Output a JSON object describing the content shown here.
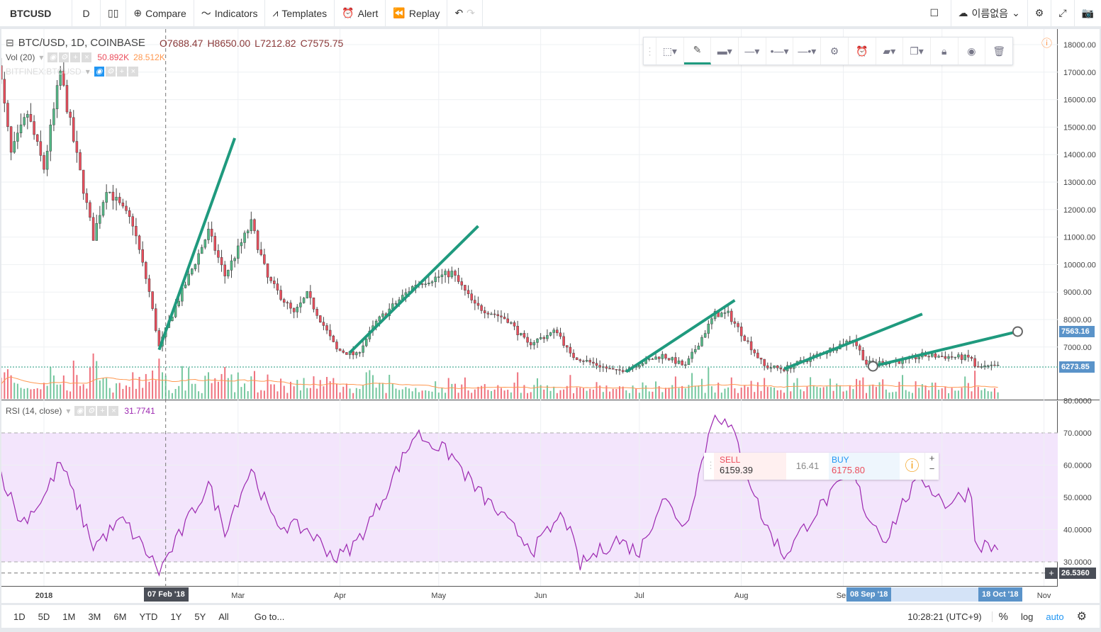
{
  "toolbar": {
    "symbol": "BTCUSD",
    "interval": "D",
    "compare": "Compare",
    "indicators": "Indicators",
    "templates": "Templates",
    "alert": "Alert",
    "replay": "Replay",
    "layout_name": "이름없음"
  },
  "legend": {
    "title": "BTC/USD, 1D, COINBASE",
    "o": "O7688.47",
    "h": "H8650.00",
    "l": "L7212.82",
    "c": "C7575.75",
    "vol_label": "Vol (20)",
    "vol_value": "50.892K",
    "vol_ma": "28.512K",
    "compare_symbol": "BITFINEX:BTCUSD",
    "rsi_label": "RSI (14, close)",
    "rsi_value": "31.7741"
  },
  "price_axis": [
    "18000.00",
    "17000.00",
    "16000.00",
    "15000.00",
    "14000.00",
    "13000.00",
    "12000.00",
    "11000.00",
    "10000.00",
    "9000.00",
    "8000.00",
    "7000.00"
  ],
  "price_tags": {
    "line": "7563.16",
    "last": "6273.85"
  },
  "rsi_axis": [
    "80.0000",
    "70.0000",
    "60.0000",
    "50.0000",
    "40.0000",
    "30.0000"
  ],
  "rsi_cursor": "26.5360",
  "time_axis": [
    "2018",
    "Mar",
    "Apr",
    "May",
    "Jun",
    "Jul",
    "Aug",
    "Sep",
    "Oct",
    "Nov"
  ],
  "date_tags": {
    "cursor": "07 Feb '18",
    "range_start": "08 Sep '18",
    "range_end": "18 Oct '18"
  },
  "trade": {
    "sell_label": "SELL",
    "sell_price": "6159.39",
    "spread": "16.41",
    "buy_label": "BUY",
    "buy_price": "6175.80"
  },
  "bottom": {
    "ranges": [
      "1D",
      "5D",
      "1M",
      "3M",
      "6M",
      "YTD",
      "1Y",
      "5Y",
      "All"
    ],
    "goto": "Go to...",
    "time": "10:28:21 (UTC+9)",
    "pct": "%",
    "log": "log",
    "auto": "auto"
  },
  "colors": {
    "up": "#53b987",
    "down": "#eb4d5c",
    "trendline": "#1f9a7e",
    "rsi": "#9c27b0",
    "rsi_band": "#f3e5fc",
    "accent": "#2196f3"
  },
  "chart_data": {
    "type": "candlestick",
    "close_path": [
      [
        "2017-12-18",
        17500
      ],
      [
        "2017-12-22",
        14000
      ],
      [
        "2017-12-27",
        15500
      ],
      [
        "2018-01-01",
        13500
      ],
      [
        "2018-01-06",
        17000
      ],
      [
        "2018-01-10",
        14500
      ],
      [
        "2018-01-16",
        11000
      ],
      [
        "2018-01-20",
        12800
      ],
      [
        "2018-01-28",
        11500
      ],
      [
        "2018-02-02",
        9000
      ],
      [
        "2018-02-05",
        7000
      ],
      [
        "2018-02-09",
        8200
      ],
      [
        "2018-02-20",
        11200
      ],
      [
        "2018-02-25",
        9600
      ],
      [
        "2018-03-05",
        11500
      ],
      [
        "2018-03-10",
        9500
      ],
      [
        "2018-03-18",
        8200
      ],
      [
        "2018-03-22",
        8900
      ],
      [
        "2018-03-31",
        6900
      ],
      [
        "2018-04-06",
        6700
      ],
      [
        "2018-04-12",
        7900
      ],
      [
        "2018-04-24",
        9300
      ],
      [
        "2018-05-05",
        9700
      ],
      [
        "2018-05-12",
        8500
      ],
      [
        "2018-05-22",
        8000
      ],
      [
        "2018-05-28",
        7100
      ],
      [
        "2018-06-06",
        7600
      ],
      [
        "2018-06-10",
        6700
      ],
      [
        "2018-06-24",
        6100
      ],
      [
        "2018-07-08",
        6700
      ],
      [
        "2018-07-15",
        6300
      ],
      [
        "2018-07-24",
        8200
      ],
      [
        "2018-07-28",
        8200
      ],
      [
        "2018-08-08",
        6300
      ],
      [
        "2018-08-14",
        6200
      ],
      [
        "2018-08-24",
        6700
      ],
      [
        "2018-09-04",
        7300
      ],
      [
        "2018-09-08",
        6400
      ],
      [
        "2018-09-20",
        6500
      ],
      [
        "2018-09-25",
        6700
      ],
      [
        "2018-10-10",
        6600
      ],
      [
        "2018-10-11",
        6250
      ],
      [
        "2018-10-18",
        6280
      ]
    ],
    "rsi_path": [
      [
        "2017-12-18",
        60
      ],
      [
        "2017-12-25",
        42
      ],
      [
        "2018-01-01",
        50
      ],
      [
        "2018-01-06",
        61
      ],
      [
        "2018-01-16",
        35
      ],
      [
        "2018-01-25",
        43
      ],
      [
        "2018-02-02",
        32
      ],
      [
        "2018-02-05",
        27
      ],
      [
        "2018-02-20",
        54
      ],
      [
        "2018-02-25",
        40
      ],
      [
        "2018-03-05",
        59
      ],
      [
        "2018-03-12",
        42
      ],
      [
        "2018-03-22",
        40
      ],
      [
        "2018-03-31",
        31
      ],
      [
        "2018-04-06",
        36
      ],
      [
        "2018-04-12",
        46
      ],
      [
        "2018-04-24",
        70
      ],
      [
        "2018-05-05",
        63
      ],
      [
        "2018-05-12",
        53
      ],
      [
        "2018-05-22",
        42
      ],
      [
        "2018-05-30",
        34
      ],
      [
        "2018-06-08",
        45
      ],
      [
        "2018-06-13",
        29
      ],
      [
        "2018-06-24",
        37
      ],
      [
        "2018-07-01",
        33
      ],
      [
        "2018-07-08",
        50
      ],
      [
        "2018-07-15",
        41
      ],
      [
        "2018-07-24",
        77
      ],
      [
        "2018-07-30",
        69
      ],
      [
        "2018-08-08",
        42
      ],
      [
        "2018-08-14",
        32
      ],
      [
        "2018-08-24",
        46
      ],
      [
        "2018-09-04",
        58
      ],
      [
        "2018-09-08",
        45
      ],
      [
        "2018-09-14",
        37
      ],
      [
        "2018-09-20",
        50
      ],
      [
        "2018-09-25",
        56
      ],
      [
        "2018-10-02",
        48
      ],
      [
        "2018-10-10",
        52
      ],
      [
        "2018-10-11",
        36
      ],
      [
        "2018-10-18",
        34
      ]
    ],
    "trendlines": [
      [
        [
          "2018-02-05",
          6900
        ],
        [
          "2018-02-28",
          14600
        ]
      ],
      [
        [
          "2018-04-04",
          6800
        ],
        [
          "2018-05-13",
          11400
        ]
      ],
      [
        [
          "2018-06-27",
          6100
        ],
        [
          "2018-07-30",
          8700
        ]
      ],
      [
        [
          "2018-08-14",
          6200
        ],
        [
          "2018-09-25",
          8200
        ]
      ],
      [
        [
          "2018-09-10",
          6300
        ],
        [
          "2018-10-24",
          7563.16
        ]
      ]
    ],
    "y_range": [
      6000,
      18500
    ],
    "rsi_levels": [
      30,
      70
    ]
  }
}
